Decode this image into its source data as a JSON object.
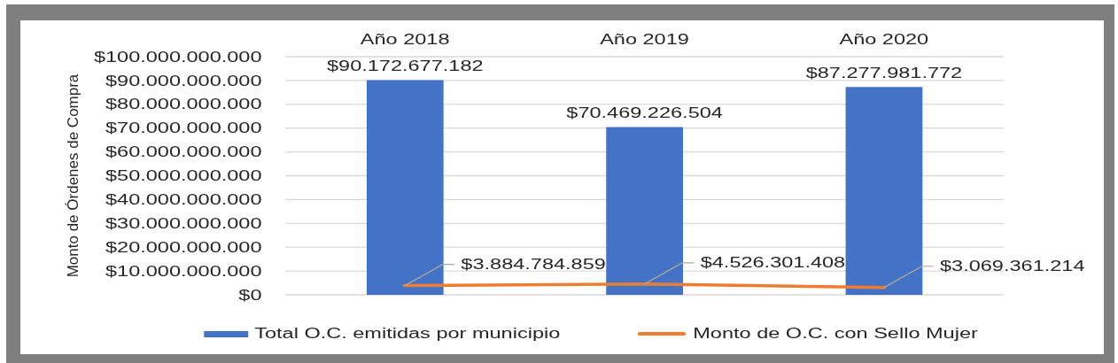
{
  "chart_data": {
    "type": "bar",
    "categories": [
      "Año 2018",
      "Año 2019",
      "Año 2020"
    ],
    "ylabel": "Monto de Órdenes de Compra",
    "series": [
      {
        "name": "Total O.C. emitidas por municipio",
        "color": "#4472c4",
        "values": [
          90172677182,
          70469226504,
          87277981772
        ],
        "value_labels": [
          "$90.172.677.182",
          "$70.469.226.504",
          "$87.277.981.772"
        ]
      },
      {
        "name": "Monto de O.C. con Sello Mujer",
        "type": "line",
        "color": "#ed7d31",
        "values": [
          3884784859,
          4526301408,
          3069361214
        ],
        "value_labels": [
          "$3.884.784.859",
          "$4.526.301.408",
          "$3.069.361.214"
        ]
      }
    ],
    "ylim": [
      0,
      100000000000
    ],
    "yticks": [
      {
        "value": 0,
        "label": "$0"
      },
      {
        "value": 10000000000,
        "label": "$10.000.000.000"
      },
      {
        "value": 20000000000,
        "label": "$20.000.000.000"
      },
      {
        "value": 30000000000,
        "label": "$30.000.000.000"
      },
      {
        "value": 40000000000,
        "label": "$40.000.000.000"
      },
      {
        "value": 50000000000,
        "label": "$50.000.000.000"
      },
      {
        "value": 60000000000,
        "label": "$60.000.000.000"
      },
      {
        "value": 70000000000,
        "label": "$70.000.000.000"
      },
      {
        "value": 80000000000,
        "label": "$80.000.000.000"
      },
      {
        "value": 90000000000,
        "label": "$90.000.000.000"
      },
      {
        "value": 100000000000,
        "label": "$100.000.000.000"
      }
    ],
    "grid": "y",
    "legend": "bottom"
  }
}
